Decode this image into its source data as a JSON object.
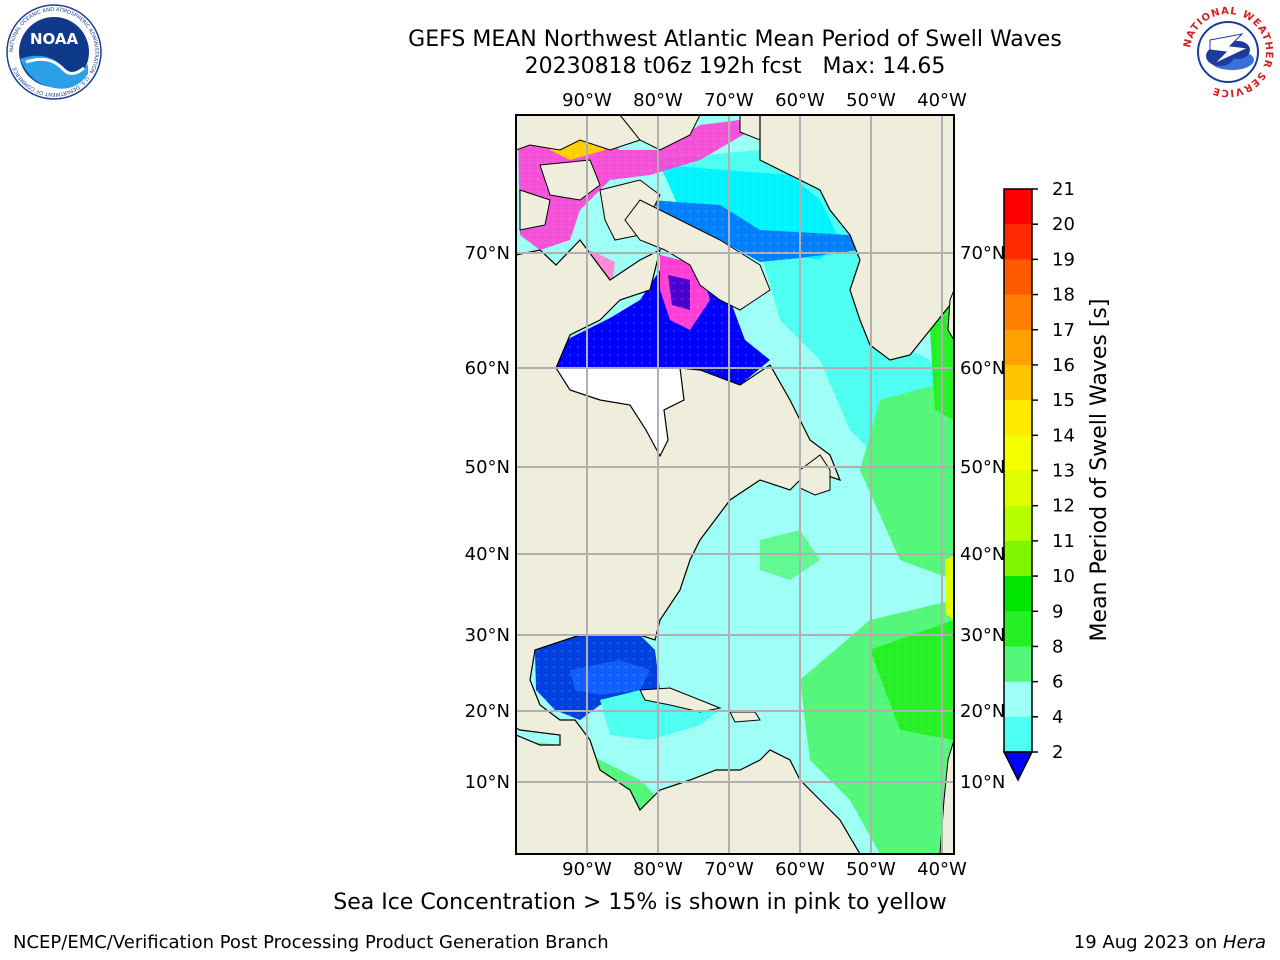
{
  "header": {
    "title_line1": "GEFS MEAN Northwest Atlantic Mean Period of Swell Waves",
    "title_line2": "20230818 t06z 192h fcst   Max: 14.65"
  },
  "logos": {
    "left": "NOAA",
    "left_ring_text": "NATIONAL OCEANIC AND ATMOSPHERIC ADMINISTRATION · U.S. DEPARTMENT OF COMMERCE",
    "right_ring_text": "NATIONAL WEATHER SERVICE"
  },
  "map": {
    "lon_labels": [
      "90°W",
      "80°W",
      "70°W",
      "60°W",
      "50°W",
      "40°W"
    ],
    "lat_labels": [
      "70°N",
      "60°N",
      "50°N",
      "40°N",
      "30°N",
      "20°N",
      "10°N"
    ],
    "colors": {
      "land": "#efeedd",
      "no_data": "#ffffff",
      "coast": "#000000",
      "grid": "#b0b0b0"
    }
  },
  "colorbar": {
    "label": "Mean Period of Swell Waves [s]",
    "ticks": [
      "21",
      "20",
      "19",
      "18",
      "17",
      "16",
      "15",
      "14",
      "13",
      "12",
      "11",
      "10",
      "9",
      "8",
      "6",
      "4",
      "2"
    ],
    "colors": [
      "#ff0000",
      "#ff2a00",
      "#ff5a00",
      "#ff7f00",
      "#ffa000",
      "#ffc400",
      "#ffea00",
      "#f5ff00",
      "#dfff00",
      "#b7ff00",
      "#7ff500",
      "#00e600",
      "#25ef25",
      "#53f77a",
      "#9dfff5",
      "#4dfff0",
      "#00f4ff",
      "#0080ff"
    ],
    "extend_color": "#0000ff"
  },
  "caption": "Sea Ice Concentration > 15% is shown in pink to yellow",
  "footer": {
    "left": "NCEP/EMC/Verification Post Processing Product Generation Branch",
    "right_date": "19 Aug 2023 on ",
    "right_host": "Hera"
  }
}
